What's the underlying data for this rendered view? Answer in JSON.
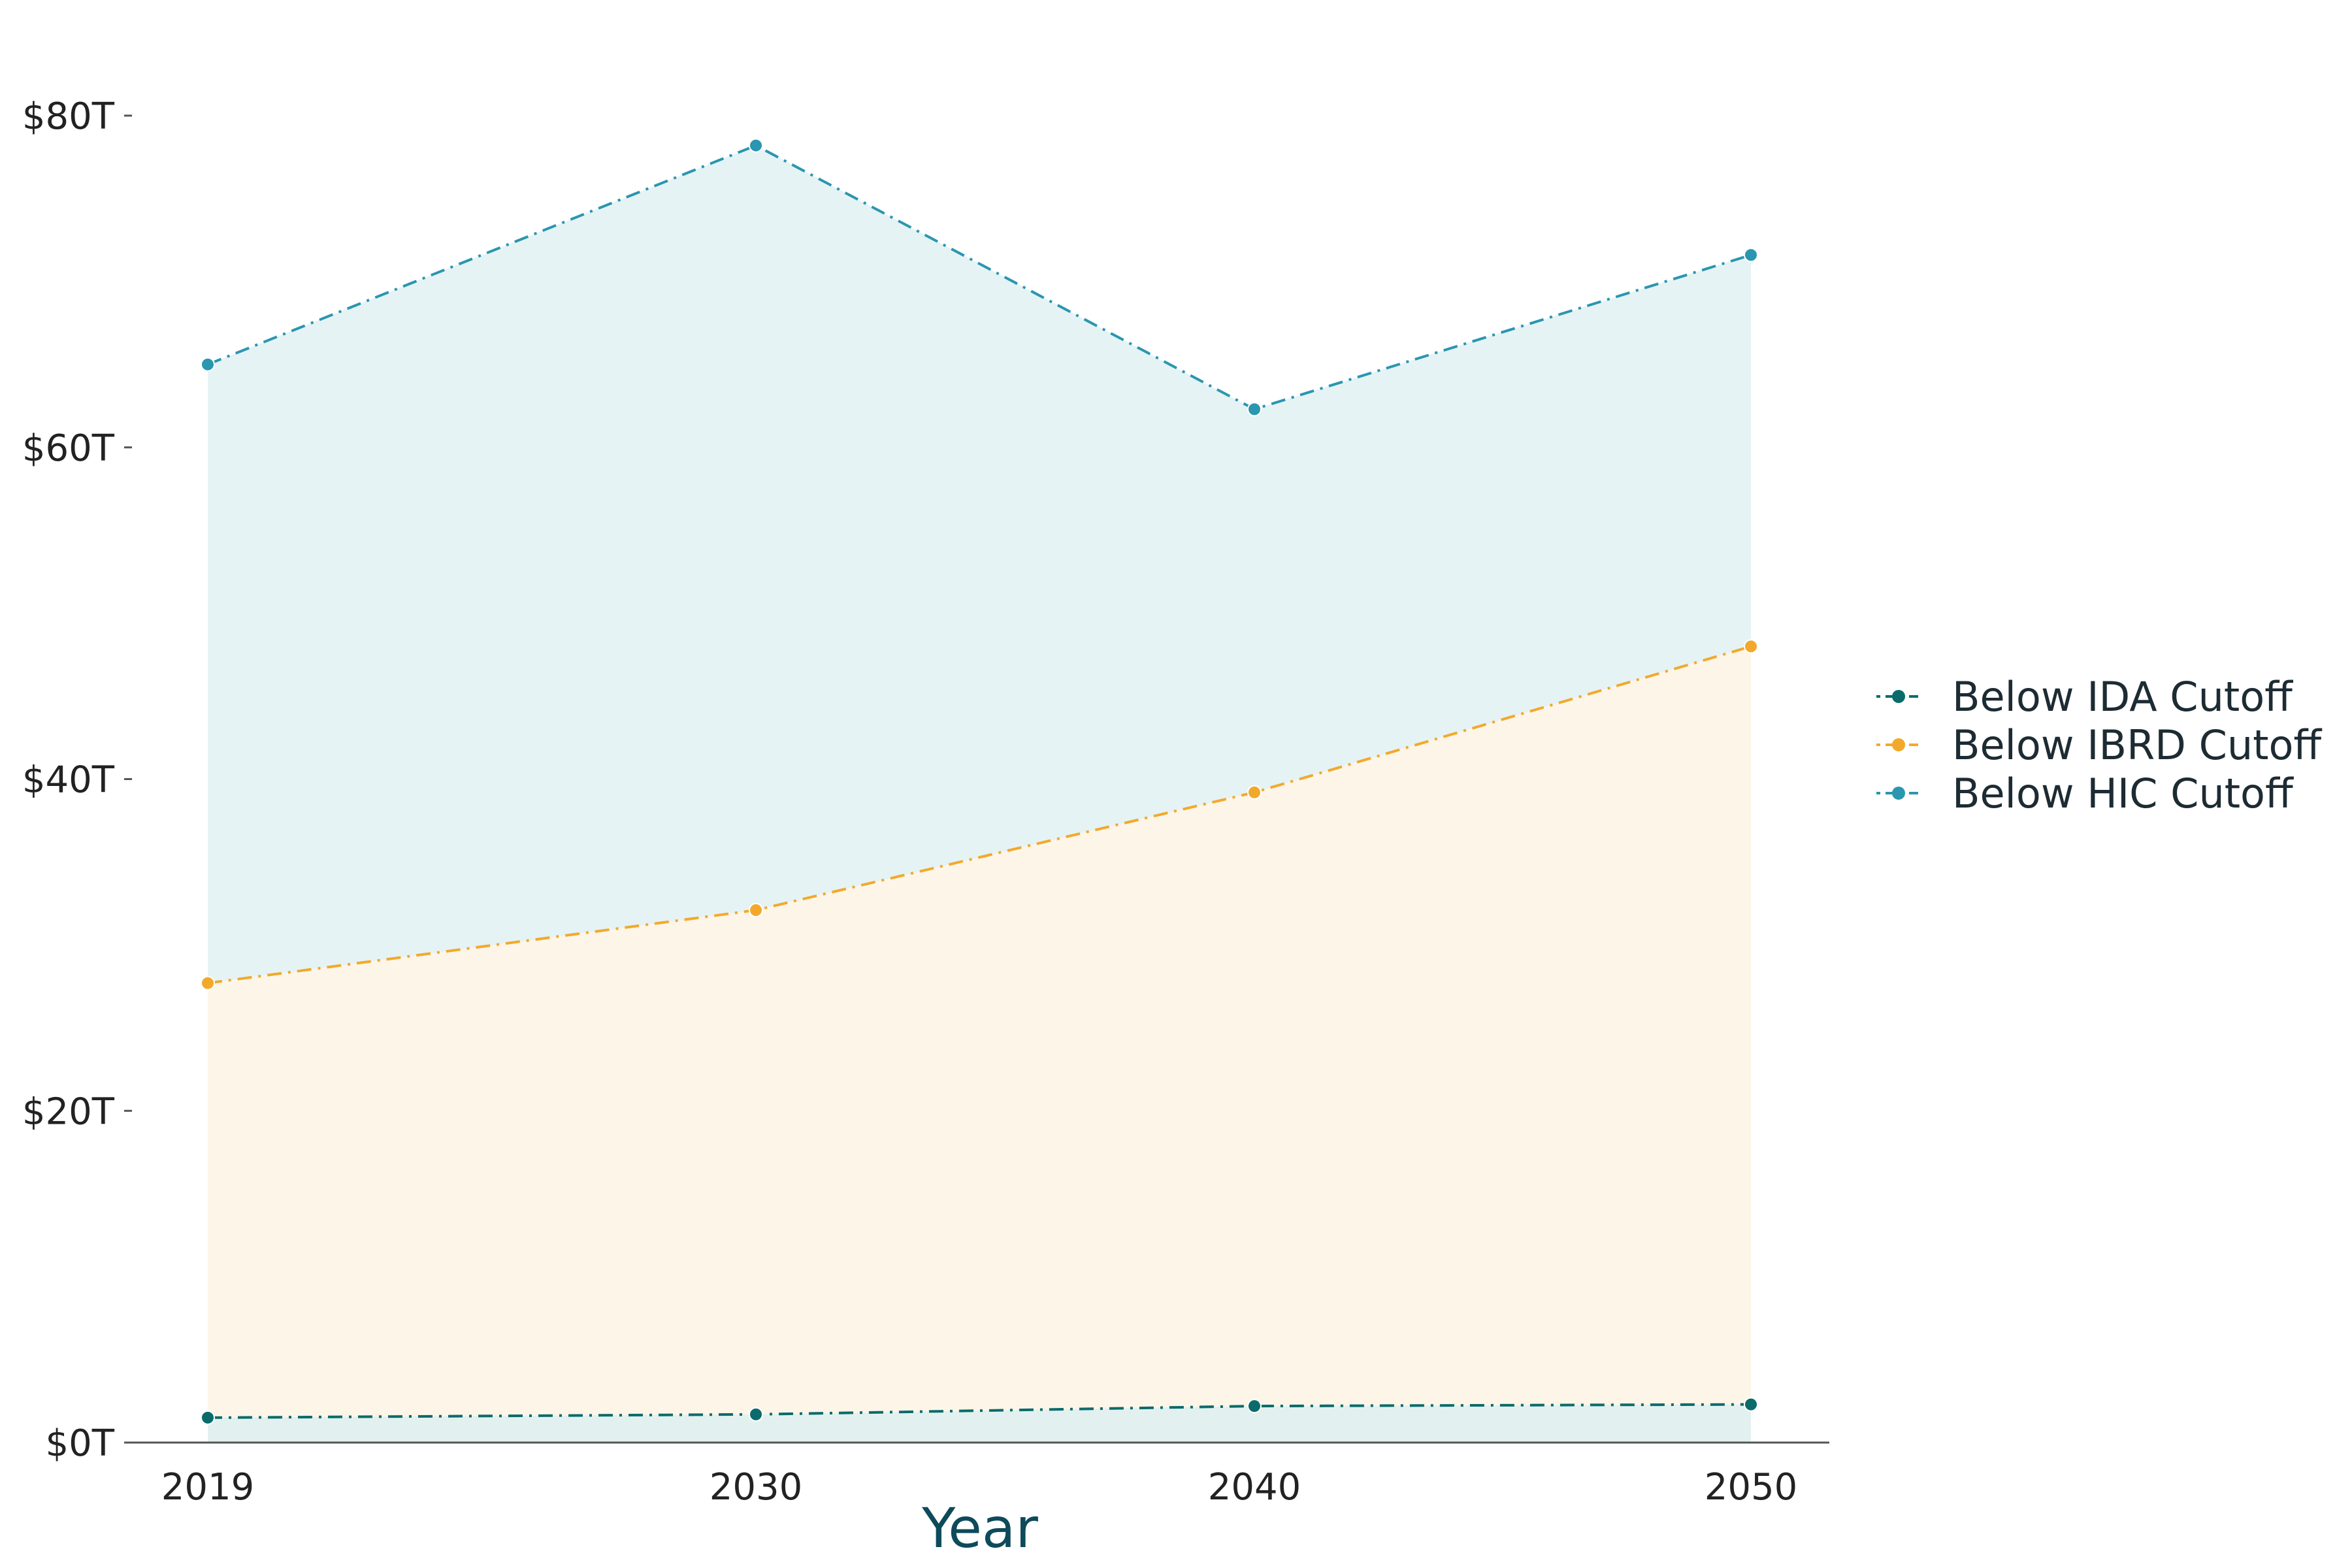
{
  "chart_data": {
    "type": "area",
    "xlabel": "Year",
    "ylabel": "",
    "categories": [
      2019,
      2030,
      2040,
      2050
    ],
    "ylim": [
      0,
      80
    ],
    "yticks": [
      0,
      20,
      40,
      60,
      80
    ],
    "ytick_labels": [
      "$0T",
      "$20T",
      "$40T",
      "$60T",
      "$80T"
    ],
    "xtick_labels": [
      "2019",
      "2030",
      "2040",
      "2050"
    ],
    "grid": false,
    "legend_position": "right",
    "series": [
      {
        "name": "Below IDA Cutoff",
        "values": [
          1.5,
          1.7,
          2.2,
          2.3
        ],
        "line_color": "#0a6b6b",
        "fill_color": "#e2f1ef"
      },
      {
        "name": "Below IBRD Cutoff",
        "values": [
          27.7,
          32.1,
          39.2,
          48.0
        ],
        "line_color": "#f2a92b",
        "fill_color": "#fdf5e8"
      },
      {
        "name": "Below HIC Cutoff",
        "values": [
          65.0,
          78.2,
          62.3,
          71.6
        ],
        "line_color": "#2a96b0",
        "fill_color": "#e6f3f5"
      }
    ]
  }
}
